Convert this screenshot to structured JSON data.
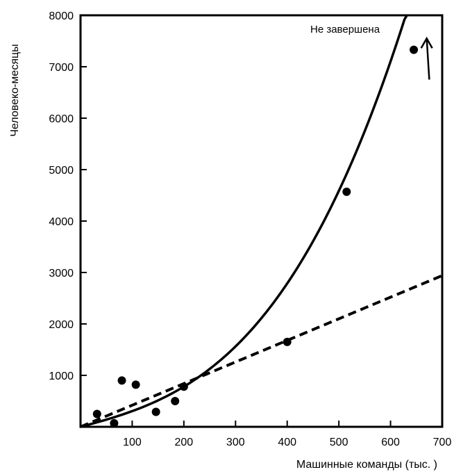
{
  "chart_data": {
    "type": "scatter",
    "title": "",
    "xlabel": "Машинные команды (тыс. )",
    "ylabel": "Человеко-месяцы",
    "xlim": [
      0,
      700
    ],
    "ylim": [
      0,
      8000
    ],
    "x_ticks": [
      "100",
      "200",
      "300",
      "400",
      "500",
      "600",
      "700"
    ],
    "y_ticks": [
      "1000",
      "2000",
      "3000",
      "4000",
      "5000",
      "6000",
      "7000",
      "8000"
    ],
    "grid": false,
    "legend": "none",
    "points": [
      {
        "x": 32,
        "y": 250
      },
      {
        "x": 65,
        "y": 70
      },
      {
        "x": 80,
        "y": 900
      },
      {
        "x": 107,
        "y": 820
      },
      {
        "x": 146,
        "y": 290
      },
      {
        "x": 183,
        "y": 500
      },
      {
        "x": 200,
        "y": 780
      },
      {
        "x": 400,
        "y": 1650
      },
      {
        "x": 515,
        "y": 4570
      },
      {
        "x": 645,
        "y": 7330
      }
    ],
    "curves": [
      {
        "style": "solid",
        "fit": "cubic",
        "x_range": [
          0,
          670
        ],
        "coefficients": [
          0,
          2.65,
          0.00175,
          2.26e-05
        ]
      },
      {
        "style": "dashed",
        "fit": "linear",
        "x_range": [
          0,
          700
        ],
        "coefficients": [
          0,
          4.2
        ]
      }
    ],
    "annotation": {
      "text": "Не завершена",
      "arrow": {
        "from": [
          675,
          6750
        ],
        "to": [
          670,
          7550
        ]
      }
    },
    "colors": {
      "ink": "#000000",
      "background": "#ffffff"
    }
  }
}
